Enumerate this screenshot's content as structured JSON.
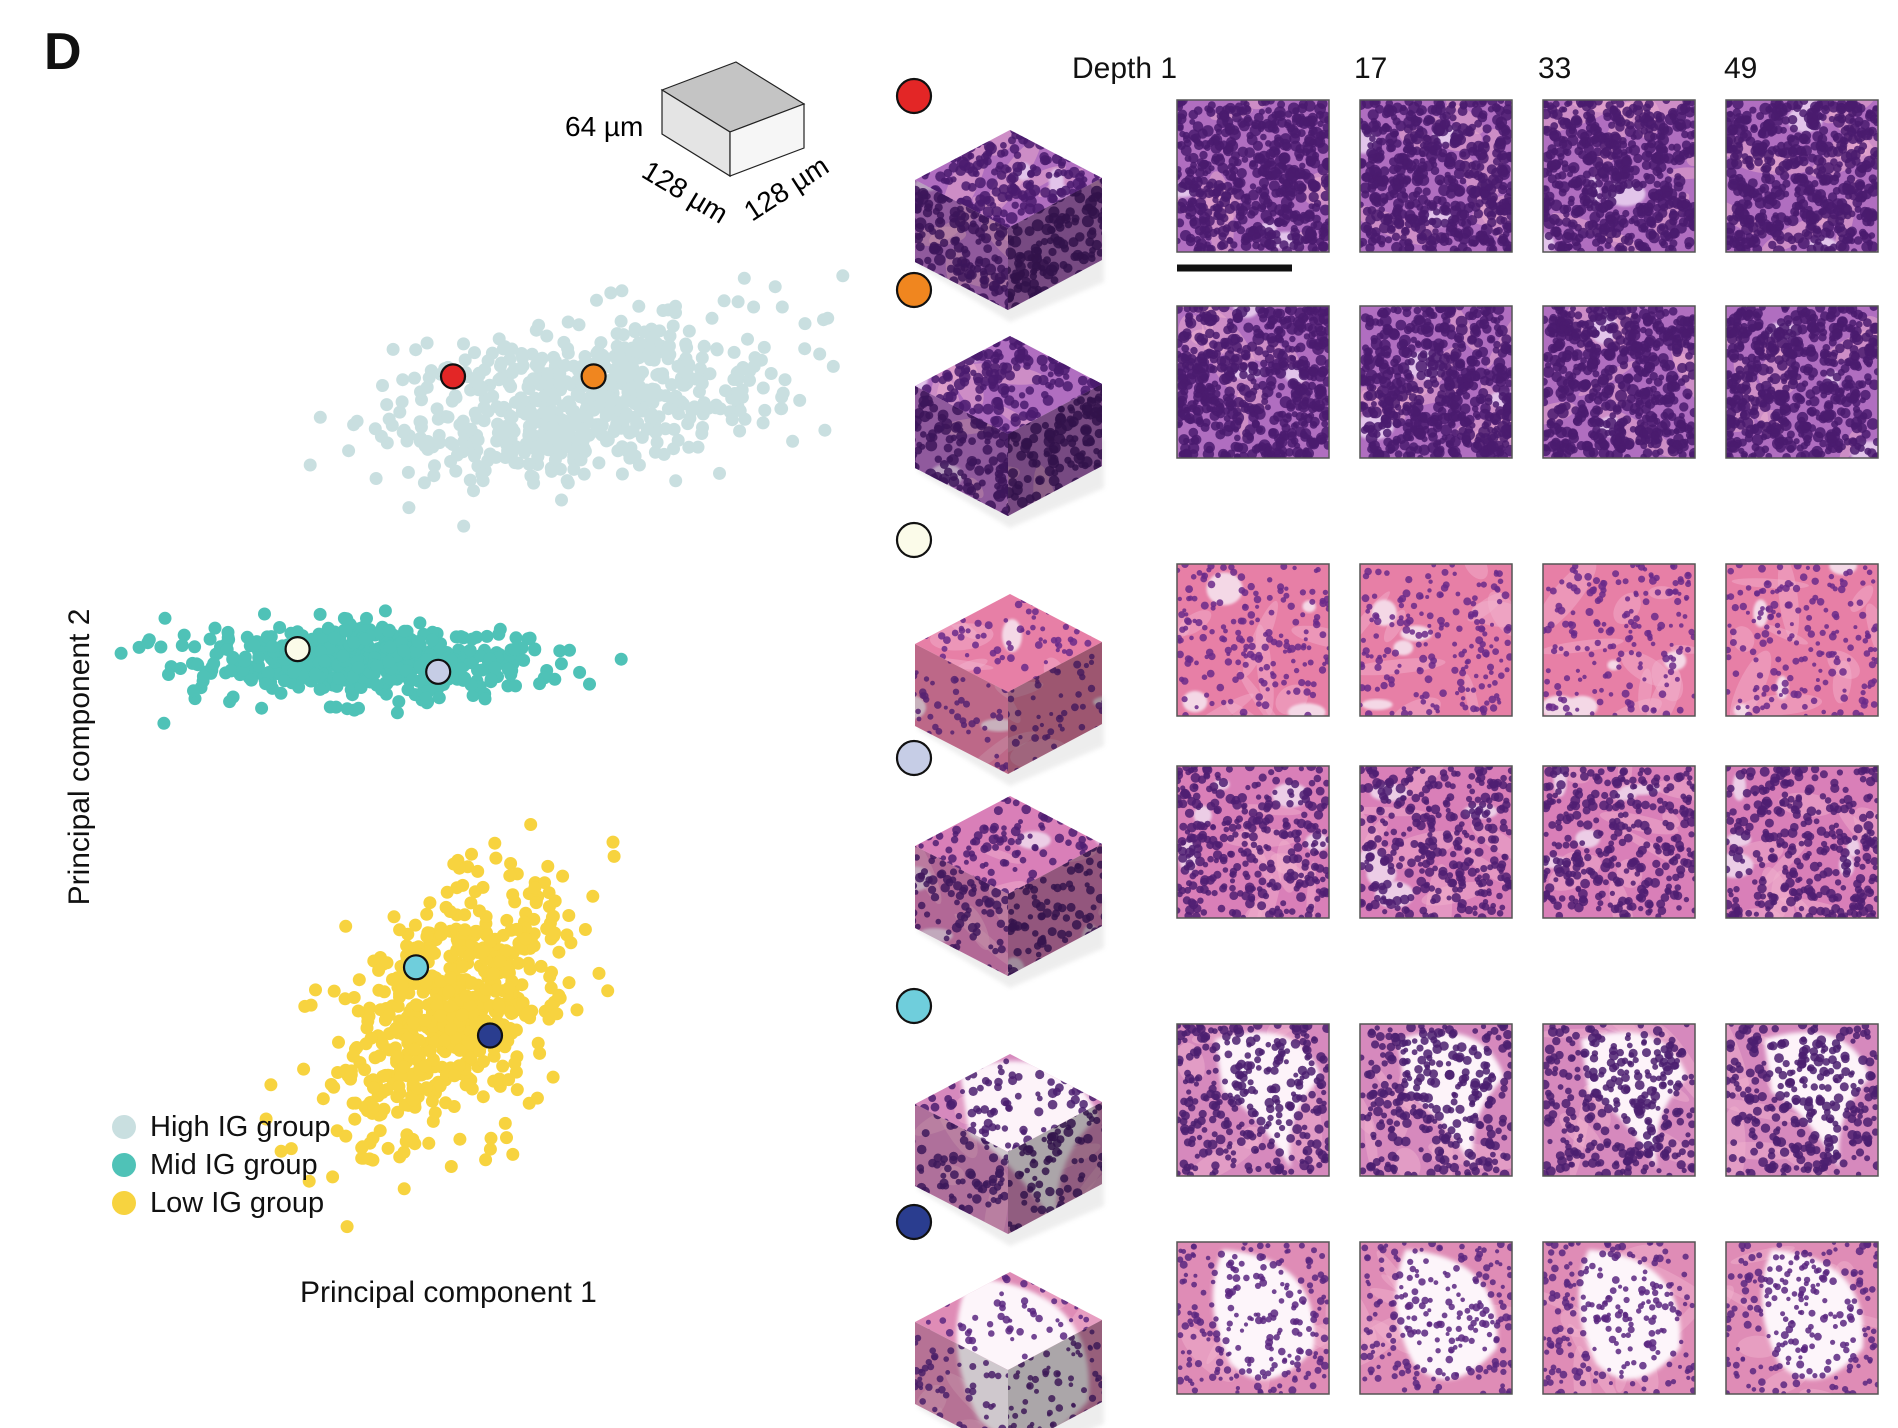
{
  "panel_label": "D",
  "cube_dims": {
    "height": "64 µm",
    "width_left": "128 µm",
    "width_right": "128 µm"
  },
  "depth_labels": [
    "Depth 1",
    "17",
    "33",
    "49"
  ],
  "legend": [
    {
      "label": "High IG group",
      "color": "#c9dfe0"
    },
    {
      "label": "Mid IG group",
      "color": "#4fc2b7"
    },
    {
      "label": "Low IG group",
      "color": "#f7d33f"
    }
  ],
  "chart_data": {
    "type": "scatter",
    "xlabel": "Principal component 1",
    "ylabel": "Principal component 2",
    "clusters": [
      {
        "name": "High IG group",
        "color": "#c9dfe0",
        "center": [
          0.62,
          0.28
        ],
        "spread": [
          0.24,
          0.06
        ],
        "count": 620
      },
      {
        "name": "Mid IG group",
        "color": "#4fc2b7",
        "center": [
          0.33,
          0.05
        ],
        "spread": [
          0.2,
          0.028
        ],
        "count": 560
      },
      {
        "name": "Low IG group",
        "color": "#f7d33f",
        "center": [
          0.45,
          -0.26
        ],
        "spread": [
          0.13,
          0.11
        ],
        "count": 620
      }
    ],
    "highlighted_points": [
      {
        "color": "#e32626",
        "x": 0.45,
        "y": 0.3
      },
      {
        "color": "#f0861f",
        "x": 0.64,
        "y": 0.3
      },
      {
        "color": "#fbfbe9",
        "x": 0.24,
        "y": 0.06
      },
      {
        "color": "#c6cde6",
        "x": 0.43,
        "y": 0.04
      },
      {
        "color": "#6fcedc",
        "x": 0.4,
        "y": -0.22
      },
      {
        "color": "#2a3d8f",
        "x": 0.5,
        "y": -0.28
      }
    ]
  },
  "samples": [
    {
      "marker_color": "#e32626",
      "tissue": "dense"
    },
    {
      "marker_color": "#f0861f",
      "tissue": "dense"
    },
    {
      "marker_color": "#fbfbe9",
      "tissue": "stroma"
    },
    {
      "marker_color": "#c6cde6",
      "tissue": "glandular"
    },
    {
      "marker_color": "#6fcedc",
      "tissue": "lumen"
    },
    {
      "marker_color": "#2a3d8f",
      "tissue": "lumen-large"
    }
  ]
}
